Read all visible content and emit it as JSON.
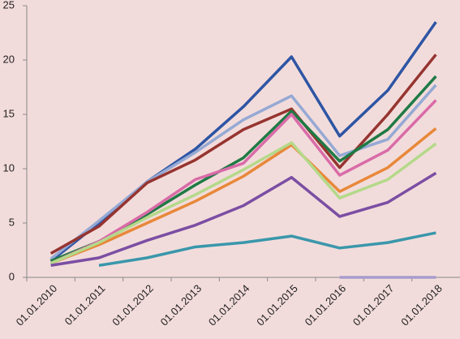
{
  "chart_data": {
    "type": "line",
    "categories": [
      "01.01.2010",
      "01.01.2011",
      "01.01.2012",
      "01.01.2013",
      "01.01.2014",
      "01.01.2015",
      "01.01.2016",
      "01.01.2017",
      "01.01.2018"
    ],
    "ylim": [
      0,
      25
    ],
    "yticks": [
      0,
      5,
      10,
      15,
      20,
      25
    ],
    "grid": false,
    "series": [
      {
        "color": "#2e55a4",
        "values": [
          1.5,
          5.0,
          8.8,
          11.8,
          15.7,
          20.3,
          13.0,
          17.2,
          23.5
        ]
      },
      {
        "color": "#95a9d4",
        "values": [
          1.7,
          5.2,
          8.8,
          11.5,
          14.5,
          16.7,
          11.2,
          12.7,
          17.7
        ]
      },
      {
        "color": "#963430",
        "values": [
          2.2,
          4.7,
          8.7,
          10.8,
          13.6,
          15.5,
          10.1,
          15.0,
          20.5
        ]
      },
      {
        "color": "#1f7a45",
        "values": [
          1.5,
          3.3,
          5.8,
          8.5,
          11.0,
          15.3,
          10.7,
          13.6,
          18.5
        ]
      },
      {
        "color": "#d96ba8",
        "values": [
          1.3,
          3.3,
          6.0,
          9.0,
          10.5,
          15.0,
          9.4,
          11.7,
          16.3
        ]
      },
      {
        "color": "#e8883a",
        "values": [
          1.3,
          3.0,
          5.0,
          7.0,
          9.3,
          12.2,
          7.9,
          10.1,
          13.7
        ]
      },
      {
        "color": "#b4d98a",
        "values": [
          1.3,
          3.2,
          5.5,
          7.6,
          9.9,
          12.4,
          7.3,
          9.0,
          12.3
        ]
      },
      {
        "color": "#7b4ea3",
        "values": [
          1.1,
          1.8,
          3.4,
          4.8,
          6.6,
          9.2,
          5.6,
          6.9,
          9.6
        ]
      },
      {
        "color": "#3a97ab",
        "values": [
          null,
          1.1,
          1.8,
          2.8,
          3.2,
          3.8,
          2.7,
          3.2,
          4.1
        ]
      },
      {
        "color": "#a79bce",
        "values": [
          null,
          null,
          null,
          null,
          null,
          null,
          0,
          0,
          0
        ]
      }
    ]
  }
}
